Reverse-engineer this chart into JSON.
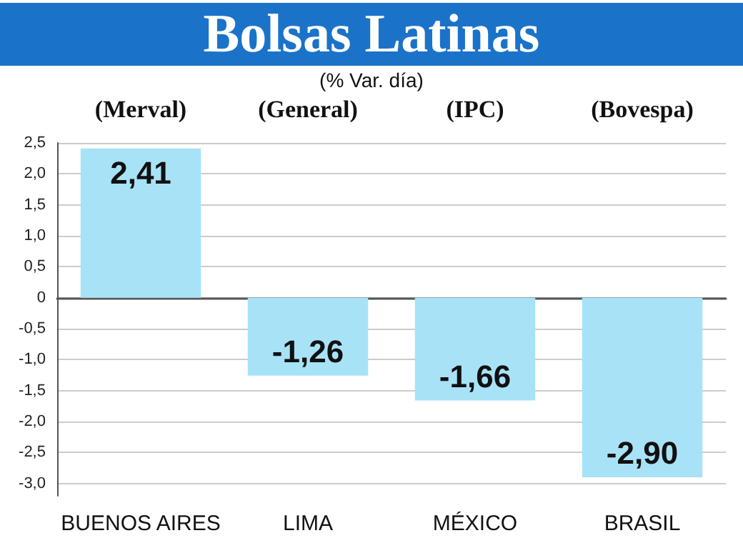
{
  "chart_data": {
    "type": "bar",
    "title": "Bolsas Latinas",
    "subtitle": "(% Var. día)",
    "categories": [
      "BUENOS AIRES",
      "LIMA",
      "MÉXICO",
      "BRASIL"
    ],
    "values": [
      2.41,
      -1.26,
      -1.66,
      -2.9
    ],
    "value_labels": [
      "2,41",
      "-1,26",
      "-1,66",
      "-2,90"
    ],
    "color": "#a8e2f7",
    "annotations": [
      "(Merval)",
      "(General)",
      "(IPC)",
      "(Bovespa)"
    ],
    "ylim": [
      -3.2,
      2.5
    ],
    "yticks": [
      {
        "value": 2.5,
        "label": "2,5"
      },
      {
        "value": 2.0,
        "label": "2,0"
      },
      {
        "value": 1.5,
        "label": "1,5"
      },
      {
        "value": 1.0,
        "label": "1,0"
      },
      {
        "value": 0.5,
        "label": "0,5"
      },
      0,
      {
        "value": -0.5,
        "label": "-0,5"
      },
      {
        "value": -1.0,
        "label": "-1,0"
      },
      {
        "value": -1.5,
        "label": "-1,5"
      },
      {
        "value": -2.0,
        "label": "-2,0"
      },
      {
        "value": -2.5,
        "label": "-2,5"
      },
      {
        "value": -3.0,
        "label": "-3,0"
      }
    ],
    "grid": "y"
  }
}
